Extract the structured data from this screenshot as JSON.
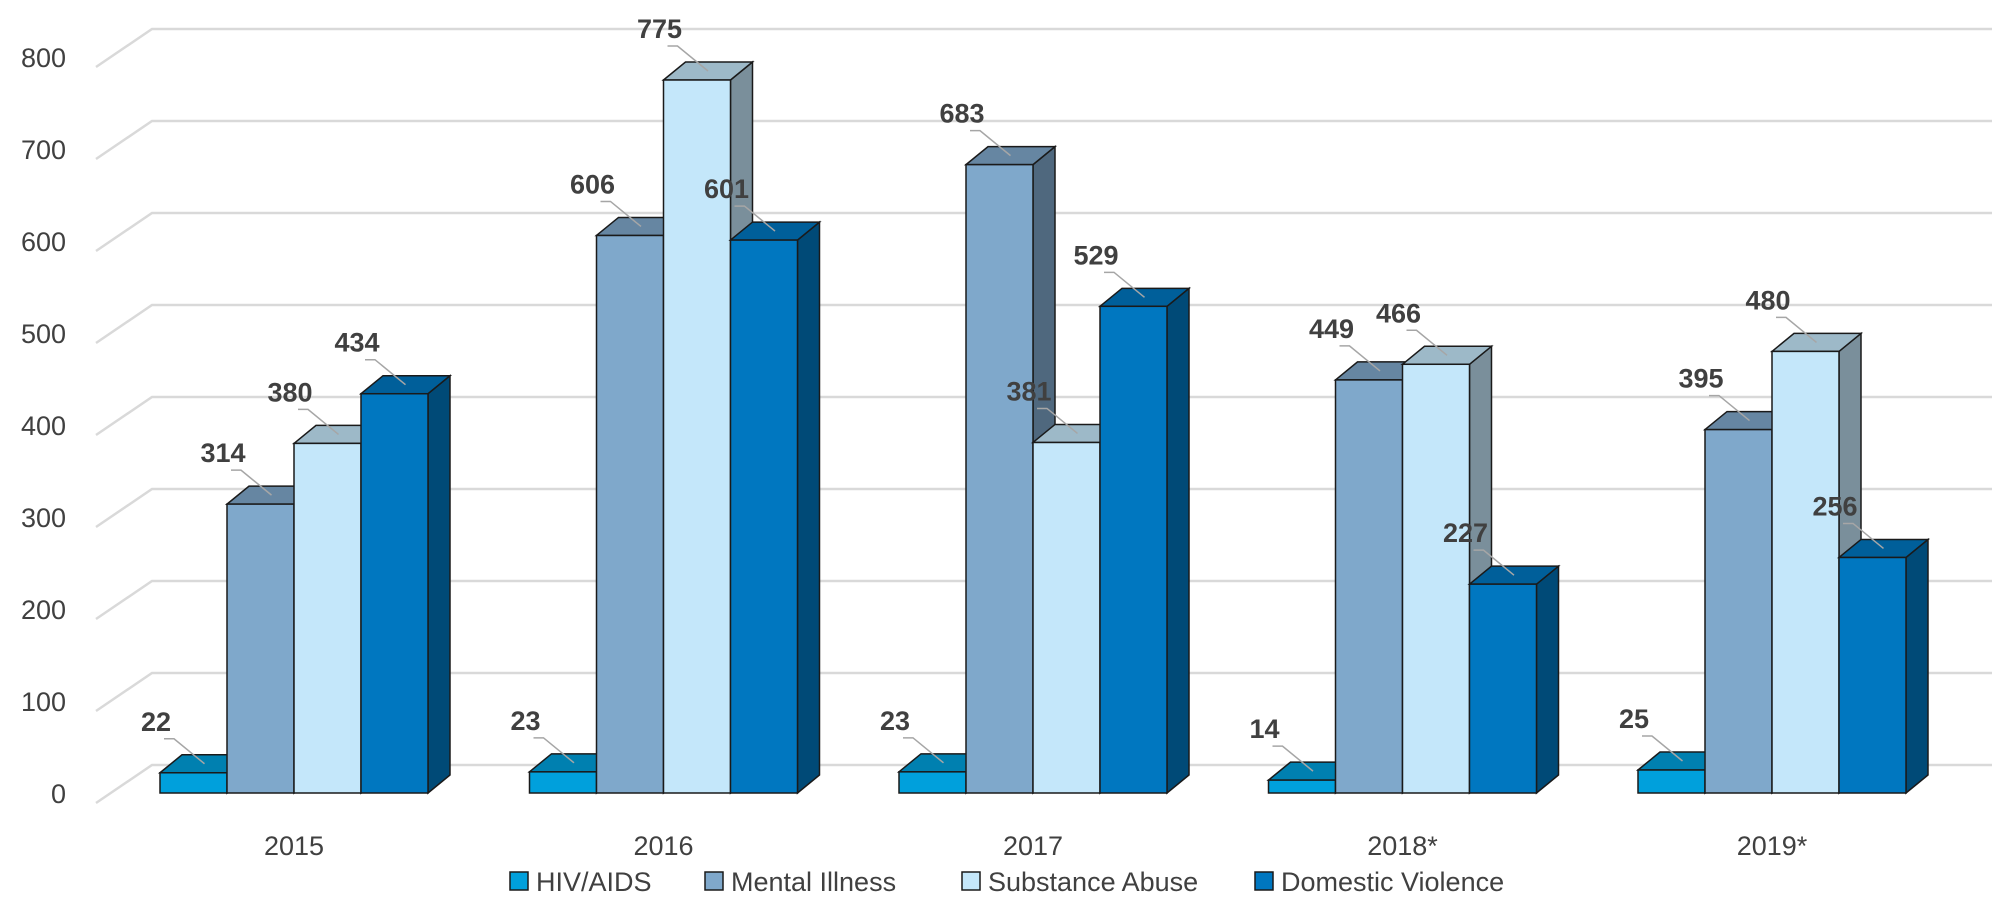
{
  "chart_data": {
    "type": "bar",
    "title": "",
    "xlabel": "",
    "ylabel": "",
    "categories": [
      "2015",
      "2016",
      "2017",
      "2018*",
      "2019*"
    ],
    "series": [
      {
        "name": "HIV/AIDS",
        "values": [
          22,
          23,
          23,
          14,
          25
        ],
        "color": "#00A0DC"
      },
      {
        "name": "Mental Illness",
        "values": [
          314,
          606,
          683,
          449,
          395
        ],
        "color": "#7FA8CB"
      },
      {
        "name": "Substance Abuse",
        "values": [
          380,
          775,
          381,
          466,
          480
        ],
        "color": "#C4E7FA"
      },
      {
        "name": "Domestic Violence",
        "values": [
          434,
          601,
          529,
          227,
          256
        ],
        "color": "#0077C0"
      }
    ],
    "y_ticks": [
      0,
      100,
      200,
      300,
      400,
      500,
      600,
      700,
      800
    ],
    "ylim": [
      0,
      800
    ],
    "grid": true,
    "three_d": true,
    "legend_position": "bottom"
  }
}
